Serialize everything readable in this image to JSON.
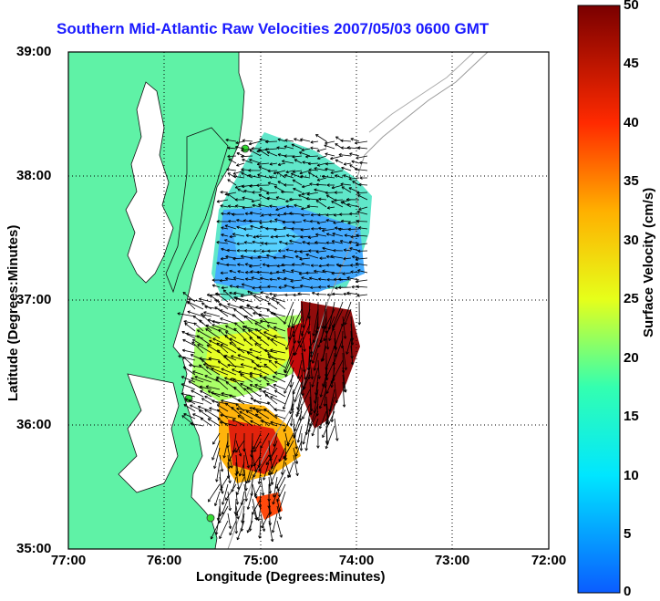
{
  "title": "Southern Mid-Atlantic Raw Velocities 2007/05/03 0600 GMT",
  "axes": {
    "x_label": "Longitude (Degrees:Minutes)",
    "y_label": "Latitude (Degrees:Minutes)",
    "x_ticks": [
      "77:00",
      "76:00",
      "75:00",
      "74:00",
      "73:00",
      "72:00"
    ],
    "y_ticks": [
      "39:00",
      "38:00",
      "37:00",
      "36:00",
      "35:00"
    ]
  },
  "colorbar": {
    "label": "Surface Velocity (cm/s)",
    "ticks": [
      "50",
      "45",
      "40",
      "35",
      "30",
      "25",
      "20",
      "15",
      "10",
      "5",
      "0"
    ],
    "range": [
      0,
      50
    ]
  },
  "colors": {
    "land": "#5ff2a6",
    "water": "#ffffff",
    "title": "#1a1aff",
    "station": "#33dd33"
  }
}
